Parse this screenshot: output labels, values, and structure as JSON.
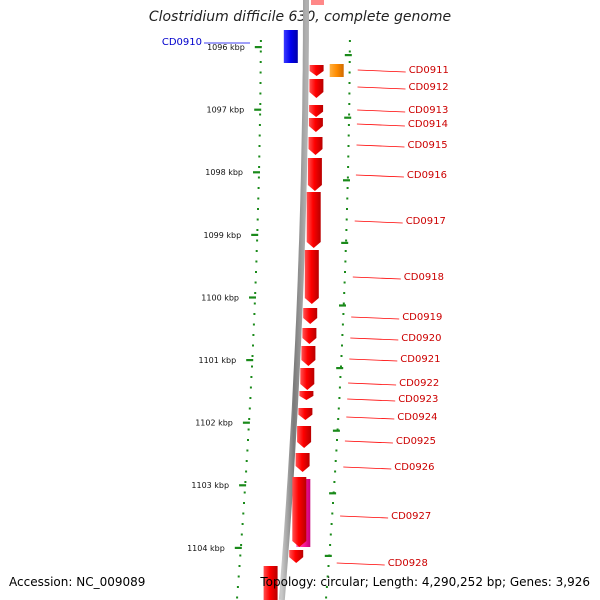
{
  "title": "Clostridium difficile 630, complete genome",
  "accession_label": "Accession: NC_009089",
  "summary_label": "Topology: circular; Length: 4,290,252 bp; Genes: 3,926",
  "colors": {
    "forward_gene": "#ff0000",
    "reverse_gene": "#0000ee",
    "other_feature_orange": "#ff8c00",
    "other_feature_pink": "#ff1f9a",
    "backbone": "#8a8a8a",
    "tick": "#1a8a1a",
    "forward_label": "#cc0000",
    "reverse_label": "#0000cc"
  },
  "ruler_labels": [
    "1096 kbp",
    "1097 kbp",
    "1098 kbp",
    "1099 kbp",
    "1100 kbp",
    "1101 kbp",
    "1102 kbp",
    "1103 kbp",
    "1104 kbp"
  ],
  "genes": [
    {
      "id": "CD0910",
      "strand": "reverse"
    },
    {
      "id": "CD0911",
      "strand": "forward"
    },
    {
      "id": "CD0912",
      "strand": "forward"
    },
    {
      "id": "CD0913",
      "strand": "forward"
    },
    {
      "id": "CD0914",
      "strand": "forward"
    },
    {
      "id": "CD0915",
      "strand": "forward"
    },
    {
      "id": "CD0916",
      "strand": "forward"
    },
    {
      "id": "CD0917",
      "strand": "forward"
    },
    {
      "id": "CD0918",
      "strand": "forward"
    },
    {
      "id": "CD0919",
      "strand": "forward"
    },
    {
      "id": "CD0920",
      "strand": "forward"
    },
    {
      "id": "CD0921",
      "strand": "forward"
    },
    {
      "id": "CD0922",
      "strand": "forward"
    },
    {
      "id": "CD0923",
      "strand": "forward"
    },
    {
      "id": "CD0924",
      "strand": "forward"
    },
    {
      "id": "CD0925",
      "strand": "forward"
    },
    {
      "id": "CD0926",
      "strand": "forward"
    },
    {
      "id": "CD0927",
      "strand": "forward"
    },
    {
      "id": "CD0928",
      "strand": "forward"
    }
  ]
}
